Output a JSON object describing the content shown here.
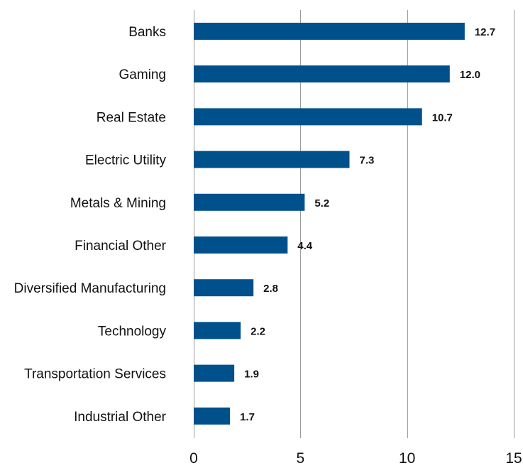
{
  "chart_data": {
    "type": "bar",
    "orientation": "horizontal",
    "categories": [
      "Banks",
      "Gaming",
      "Real Estate",
      "Electric Utility",
      "Metals & Mining",
      "Financial Other",
      "Diversified Manufacturing",
      "Technology",
      "Transportation Services",
      "Industrial Other"
    ],
    "values": [
      12.7,
      12.0,
      10.7,
      7.3,
      5.2,
      4.4,
      2.8,
      2.2,
      1.9,
      1.7
    ],
    "value_labels": [
      "12.7",
      "12.0",
      "10.7",
      "7.3",
      "5.2",
      "4.4",
      "2.8",
      "2.2",
      "1.9",
      "1.7"
    ],
    "x_ticks": [
      "0",
      "5",
      "10",
      "15"
    ],
    "xlim": [
      0,
      15
    ],
    "title": "",
    "xlabel": "",
    "ylabel": "",
    "grid": "vertical",
    "legend": "none",
    "bar_color": "#00508C"
  }
}
